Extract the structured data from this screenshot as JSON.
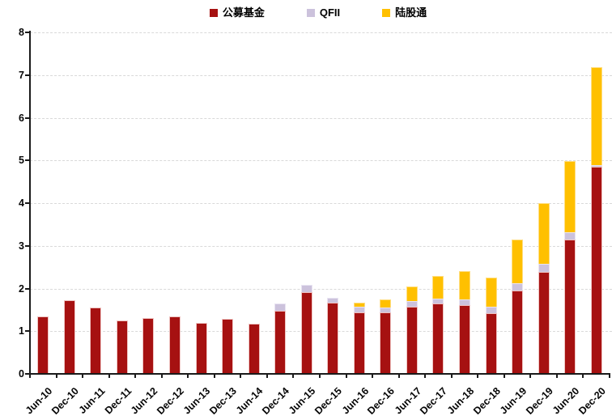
{
  "chart_data": {
    "type": "bar",
    "stacked": true,
    "title": "",
    "xlabel": "",
    "ylabel": "",
    "ylim": [
      0,
      8
    ],
    "yticks": [
      0,
      1,
      2,
      3,
      4,
      5,
      6,
      7,
      8
    ],
    "grid": "horizontal-dashed",
    "legend_position": "top-center",
    "categories": [
      "Jun-10",
      "Dec-10",
      "Jun-11",
      "Dec-11",
      "Jun-12",
      "Dec-12",
      "Jun-13",
      "Dec-13",
      "Jun-14",
      "Dec-14",
      "Jun-15",
      "Dec-15",
      "Jun-16",
      "Dec-16",
      "Jun-17",
      "Dec-17",
      "Jun-18",
      "Dec-18",
      "Jun-19",
      "Dec-19",
      "Jun-20",
      "Dec-20"
    ],
    "series": [
      {
        "name": "公募基金",
        "color": "#A61111",
        "edge_color": "#EFC4C2",
        "values": [
          1.35,
          1.72,
          1.55,
          1.26,
          1.31,
          1.34,
          1.2,
          1.28,
          1.17,
          1.47,
          1.92,
          1.66,
          1.45,
          1.45,
          1.58,
          1.64,
          1.61,
          1.43,
          1.96,
          2.39,
          3.14,
          4.85
        ]
      },
      {
        "name": "QFII",
        "color": "#CCC2DC",
        "edge_color": "#E9E4F2",
        "values": [
          0,
          0,
          0,
          0,
          0,
          0,
          0,
          0,
          0,
          0.17,
          0.16,
          0.12,
          0.12,
          0.1,
          0.12,
          0.13,
          0.14,
          0.15,
          0.17,
          0.19,
          0.17,
          0.05
        ]
      },
      {
        "name": "陆股通",
        "color": "#FFC000",
        "edge_color": "#FFDE82",
        "values": [
          0,
          0,
          0,
          0,
          0,
          0,
          0,
          0,
          0,
          0,
          0,
          0,
          0.1,
          0.2,
          0.35,
          0.52,
          0.66,
          0.67,
          1.01,
          1.42,
          1.68,
          2.28
        ]
      }
    ],
    "colors": {
      "gridline": "#d9d9d9",
      "axis": "#1a1a1a",
      "tick_text": "#050505",
      "background": "#ffffff"
    }
  }
}
